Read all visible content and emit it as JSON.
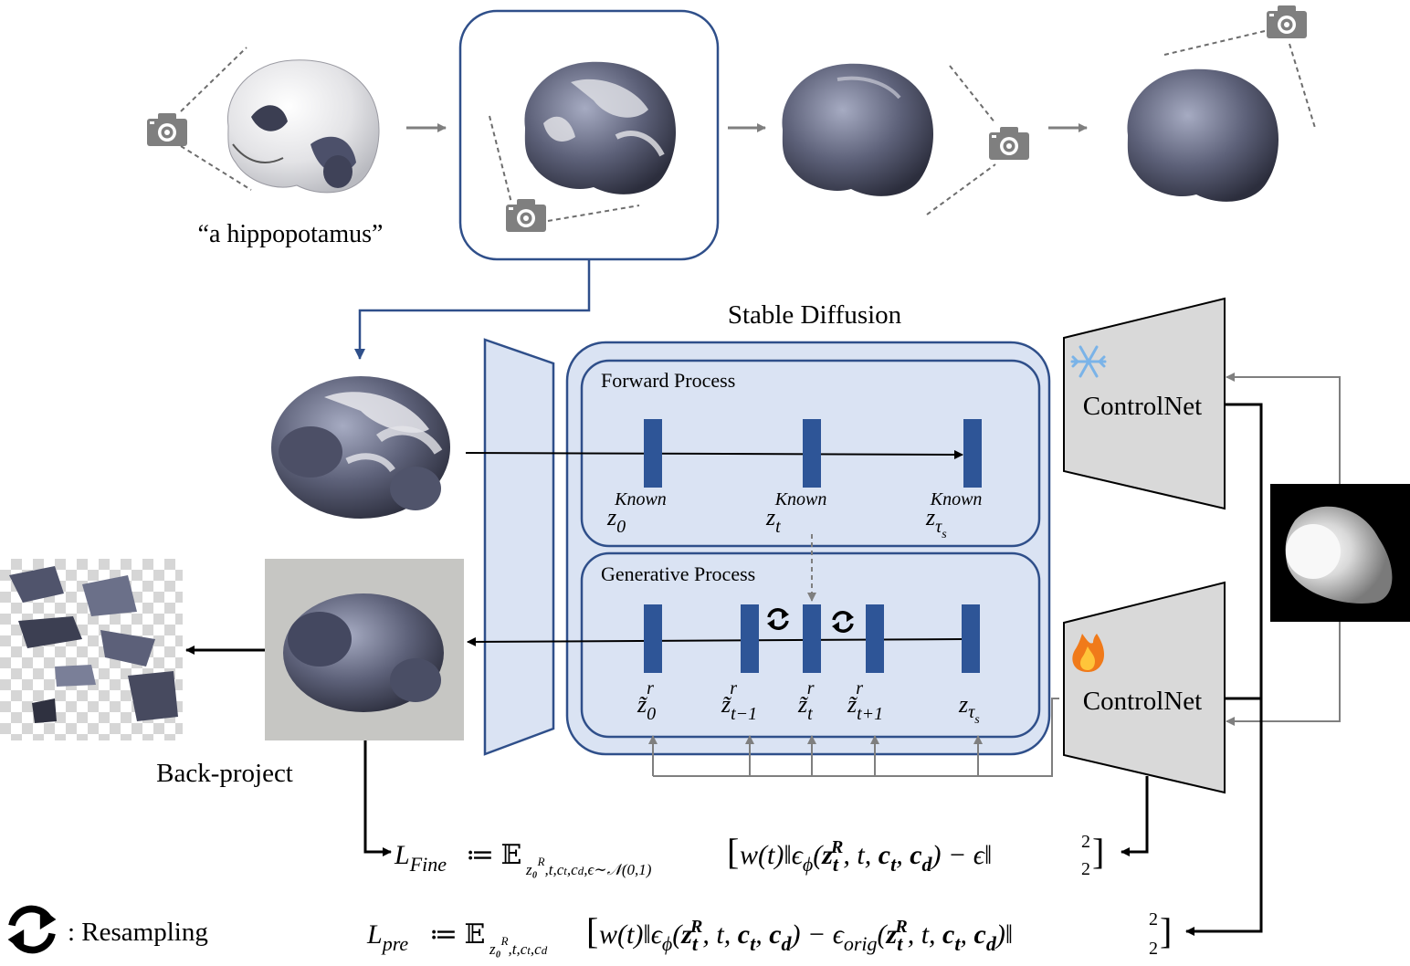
{
  "prompt": "“a hippopotamus”",
  "stable_diffusion": "Stable Diffusion",
  "forward_process": "Forward Process",
  "generative_process": "Generative Process",
  "controlnet_top": "ControlNet",
  "controlnet_bottom": "ControlNet",
  "back_project": "Back-project",
  "resampling_legend": ": Resampling",
  "forward_latents": [
    {
      "base": "z",
      "sub": "0",
      "sup": "Known"
    },
    {
      "base": "z",
      "sub": "t",
      "sup": "Known"
    },
    {
      "base": "z",
      "sub": "τ",
      "subsub": "s",
      "sup": "Known"
    }
  ],
  "generative_latents": [
    {
      "base": "z̃",
      "sub": "0",
      "sup": "r"
    },
    {
      "base": "z̃",
      "sub": "t−1",
      "sup": "r"
    },
    {
      "base": "z̃",
      "sub": "t",
      "sup": "r"
    },
    {
      "base": "z̃",
      "sub": "t+1",
      "sup": "r"
    },
    {
      "base": "z",
      "sub": "τ",
      "subsub": "s",
      "sup": ""
    }
  ],
  "loss_fine": {
    "name": "L",
    "name_sub": "Fine",
    "expect_sub": "z₀ᴿ,t,cₜ,c_d,ϵ∼𝒩(0,1)",
    "body": "w(t)‖ϵ_φ(z_t^R, t, c_t, c_d) − ϵ‖²₂"
  },
  "loss_pre": {
    "name": "L",
    "name_sub": "pre",
    "expect_sub": "z₀ᴿ,t,cₜ,c_d",
    "body": "w(t)‖ϵ_φ(z_t^R, t, c_t, c_d) − ϵ_orig(z_t^R, t, c_t, c_d)‖²₂"
  },
  "colors": {
    "blue_border": "#2f4f8a",
    "latent_bar": "#2e5597",
    "panel_fill": "#dae3f3",
    "controlnet_fill": "#d9d9d9",
    "gray_arrow": "#7f7f7f",
    "dash": "#6d6d6d"
  },
  "icons": [
    "camera-icon",
    "snowflake-icon",
    "fire-icon",
    "resampling-icon"
  ]
}
